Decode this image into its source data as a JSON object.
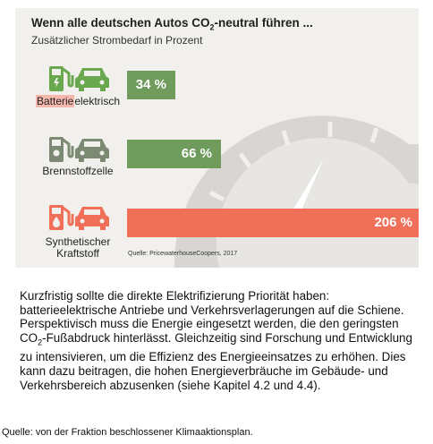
{
  "chart_data": {
    "type": "bar",
    "orientation": "horizontal",
    "title_main": "Wenn alle deutschen Autos CO",
    "title_sub_digit": "2",
    "title_rest": "-neutral führen ...",
    "subtitle": "Zusätzlicher Strombedarf in Prozent",
    "categories": [
      {
        "highlight": "Batterie",
        "rest": "elektrisch",
        "line2": ""
      },
      {
        "highlight": "",
        "rest": "Brennstoffzelle",
        "line2": ""
      },
      {
        "highlight": "",
        "rest": "Synthetischer",
        "line2": "Kraftstoff"
      }
    ],
    "values": [
      34,
      66,
      206
    ],
    "value_labels": [
      "34 %",
      "66 %",
      "206 %"
    ],
    "bar_colors": [
      "#6f9c5c",
      "#6f9c5c",
      "#ef6f58"
    ],
    "icon_colors": [
      "#6aa84f",
      "#7d8a73",
      "#ef6f58"
    ],
    "xlim": [
      0,
      206
    ],
    "grid": false,
    "source": "Quelle: PricewaterhouseCoopers, 2017"
  },
  "body": {
    "part1": "Kurzfristig sollte die direkte Elektrifizierung Priorität haben: batterieelektrische Antriebe und Verkehrsverlagerungen auf die Schiene. Perspektivisch muss die Energie eingesetzt werden, die den geringsten CO",
    "sub": "2",
    "part2": "-Fußabdruck hinterlässt. Gleichzeitig sind Forschung und Entwicklung zu intensivieren, um die Effizienz des Energieeinsatzes zu erhöhen. Dies kann dazu beitragen, die hohen Energieverbräuche im Gebäude- und Verkehrsbereich abzusenken (siehe Kapitel 4.2 und 4.4)."
  },
  "footnote": "Quelle: von der Fraktion beschlossener Klimaaktionsplan."
}
